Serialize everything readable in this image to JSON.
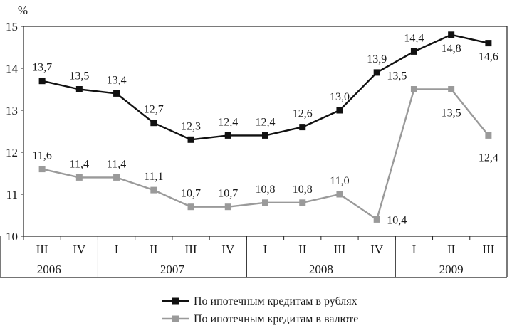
{
  "chart_data": {
    "type": "line",
    "ylabel": "%",
    "ylim": [
      10,
      15
    ],
    "yticks": [
      "10",
      "11",
      "12",
      "13",
      "14",
      "15"
    ],
    "x_quarters": [
      "III",
      "IV",
      "I",
      "II",
      "III",
      "IV",
      "I",
      "II",
      "III",
      "IV",
      "I",
      "II",
      "III"
    ],
    "year_groups": [
      {
        "label": "2006",
        "count": 2
      },
      {
        "label": "2007",
        "count": 4
      },
      {
        "label": "2008",
        "count": 4
      },
      {
        "label": "2009",
        "count": 3
      }
    ],
    "grid": false,
    "legend_position": "bottom-right",
    "series": [
      {
        "name": "По ипотечным кредитам в рублях",
        "color": "#111111",
        "values": [
          13.7,
          13.5,
          13.4,
          12.7,
          12.3,
          12.4,
          12.4,
          12.6,
          13.0,
          13.9,
          14.4,
          14.8,
          14.6
        ],
        "labels": [
          "13,7",
          "13,5",
          "13,4",
          "12,7",
          "12,3",
          "12,4",
          "12,4",
          "12,6",
          "13,0",
          "13,9",
          "14,4",
          "14,8",
          "14,6"
        ]
      },
      {
        "name": "По ипотечным кредитам в валюте",
        "color": "#9a9a9a",
        "values": [
          11.6,
          11.4,
          11.4,
          11.1,
          10.7,
          10.7,
          10.8,
          10.8,
          11.0,
          10.4,
          13.5,
          13.5,
          12.4
        ],
        "labels": [
          "11,6",
          "11,4",
          "11,4",
          "11,1",
          "10,7",
          "10,7",
          "10,8",
          "10,8",
          "11,0",
          "10,4",
          "13,5",
          "13,5",
          "12,4"
        ]
      }
    ]
  }
}
